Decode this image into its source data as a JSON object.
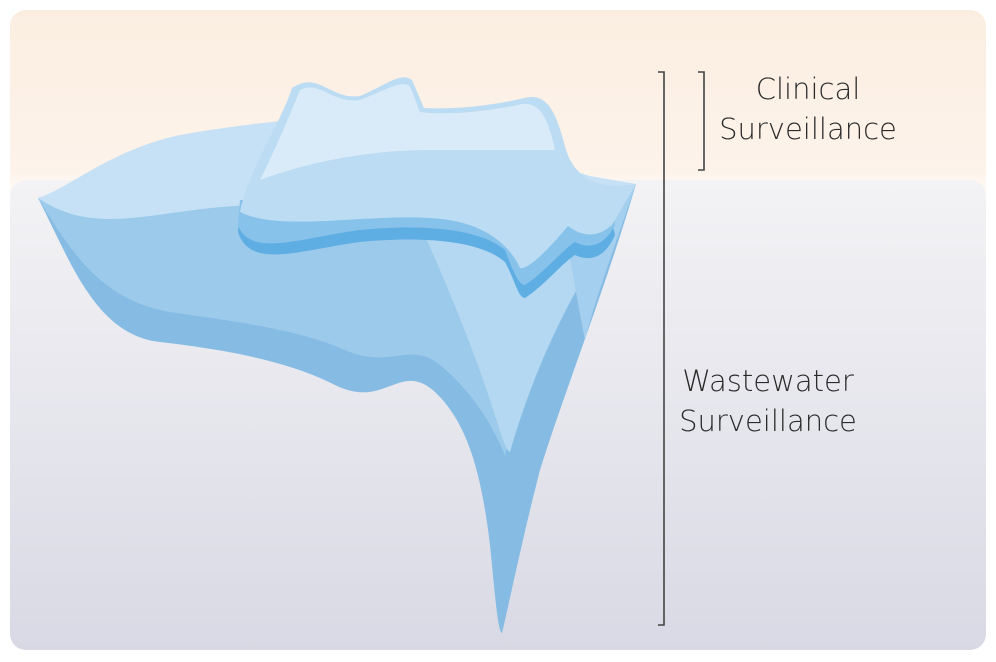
{
  "labels": [
    {
      "lines": [
        "Clinical",
        "Surveillance"
      ]
    },
    {
      "lines": [
        "Wastewater",
        "Surveillance"
      ]
    }
  ]
}
